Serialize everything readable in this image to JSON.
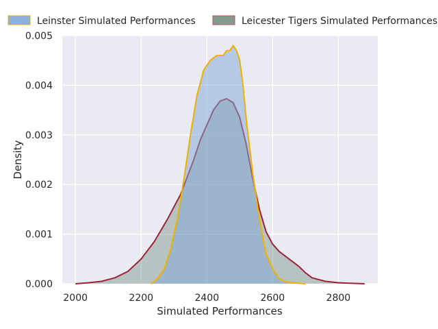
{
  "chart_data": {
    "type": "area",
    "xlabel": "Simulated Performances",
    "ylabel": "Density",
    "xlim": [
      1960,
      2920
    ],
    "ylim": [
      0,
      0.005
    ],
    "x_ticks": [
      2000,
      2200,
      2400,
      2600,
      2800
    ],
    "y_ticks": [
      0.0,
      0.001,
      0.002,
      0.003,
      0.004,
      0.005
    ],
    "x_tick_labels": [
      "2000",
      "2200",
      "2400",
      "2600",
      "2800"
    ],
    "y_tick_labels": [
      "0.000",
      "0.001",
      "0.002",
      "0.003",
      "0.004",
      "0.005"
    ],
    "grid": true,
    "legend_placement": "top, above plot, two columns",
    "series": [
      {
        "name": "Leinster Simulated Performances",
        "fill": "#7fa8d8",
        "fill_opacity": 0.5,
        "stroke": "#f0b000",
        "legend_edge": "#e8b000",
        "x": [
          2230,
          2250,
          2270,
          2290,
          2310,
          2330,
          2350,
          2370,
          2390,
          2410,
          2430,
          2450,
          2460,
          2470,
          2480,
          2490,
          2500,
          2510,
          2520,
          2540,
          2560,
          2580,
          2600,
          2620,
          2640,
          2660,
          2680,
          2700
        ],
        "y": [
          0.0,
          0.0001,
          0.0003,
          0.0007,
          0.0013,
          0.0021,
          0.003,
          0.0038,
          0.0043,
          0.0045,
          0.0046,
          0.0046,
          0.0047,
          0.0047,
          0.0048,
          0.0047,
          0.0045,
          0.004,
          0.0033,
          0.0022,
          0.0013,
          0.0006,
          0.0003,
          0.0001,
          4e-05,
          2e-05,
          1e-05,
          0.0
        ]
      },
      {
        "name": "Leicester Tigers Simulated Performances",
        "fill": "#5a7a6a",
        "fill_opacity": 0.35,
        "stroke": "#9b2335",
        "legend_edge": "#c05060",
        "x": [
          2000,
          2040,
          2080,
          2120,
          2160,
          2200,
          2240,
          2280,
          2320,
          2360,
          2380,
          2400,
          2420,
          2440,
          2460,
          2480,
          2500,
          2520,
          2540,
          2560,
          2580,
          2600,
          2620,
          2640,
          2660,
          2680,
          2700,
          2720,
          2760,
          2800,
          2840,
          2880
        ],
        "y": [
          0.0,
          2e-05,
          5e-05,
          0.00012,
          0.00025,
          0.0005,
          0.00085,
          0.0013,
          0.0018,
          0.0025,
          0.0029,
          0.0032,
          0.0035,
          0.00368,
          0.00373,
          0.00365,
          0.00335,
          0.0028,
          0.0021,
          0.0015,
          0.00105,
          0.0008,
          0.00065,
          0.00055,
          0.00045,
          0.00035,
          0.00022,
          0.00012,
          5e-05,
          2e-05,
          1e-05,
          0.0
        ]
      }
    ]
  }
}
